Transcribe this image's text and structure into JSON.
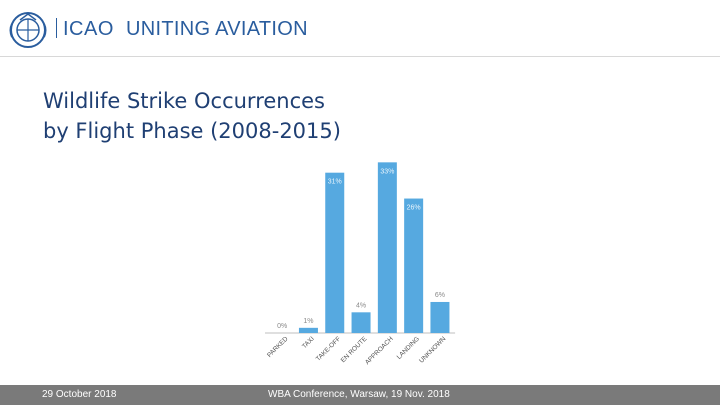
{
  "header": {
    "org_name": "ICAO",
    "tagline": "UNITING AVIATION",
    "logo_icon": "icao-emblem-icon",
    "brand_color": "#2a5d9e"
  },
  "title": {
    "line1": "Wildlife Strike Occurrences",
    "line2": "by Flight Phase (2008-2015)"
  },
  "chart_data": {
    "type": "bar",
    "title": "",
    "xlabel": "",
    "ylabel": "",
    "categories": [
      "PARKED",
      "TAXI",
      "TAKE-OFF",
      "EN ROUTE",
      "APPROACH",
      "LANDING",
      "UNKNOWN"
    ],
    "values": [
      0,
      1,
      31,
      4,
      33,
      26,
      6
    ],
    "labels": [
      "0%",
      "1%",
      "31%",
      "4%",
      "33%",
      "26%",
      "6%"
    ],
    "unit": "%",
    "ylim": [
      0,
      35
    ],
    "grid": false,
    "legend": "none",
    "bar_color": "#56a9e0",
    "label_color": "#8a8a8a"
  },
  "footer": {
    "date": "29 October 2018",
    "event": "WBA Conference, Warsaw, 19 Nov. 2018",
    "background": "#7a7a7a"
  }
}
